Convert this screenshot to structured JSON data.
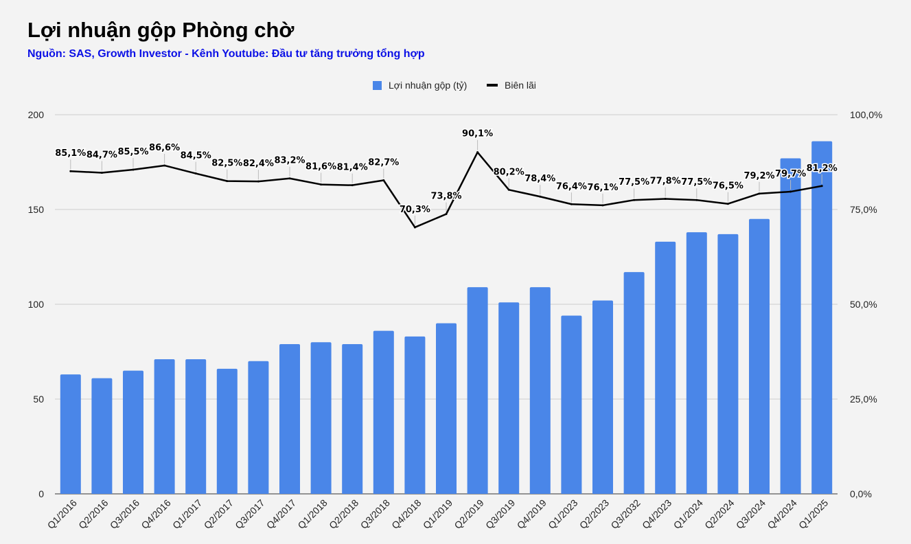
{
  "header": {
    "title": "Lợi nhuận gộp Phòng chờ",
    "subtitle": "Nguồn: SAS, Growth Investor - Kênh Youtube: Đầu tư tăng trưởng tổng hợp"
  },
  "colors": {
    "bar": "#4a86e8",
    "line": "#000000",
    "grid": "#cccccc",
    "subtitle": "#0b10e6"
  },
  "chart_data": {
    "type": "bar",
    "title": "Lợi nhuận gộp Phòng chờ",
    "categories": [
      "Q1/2016",
      "Q2/2016",
      "Q3/2016",
      "Q4/2016",
      "Q1/2017",
      "Q2/2017",
      "Q3/2017",
      "Q4/2017",
      "Q1/2018",
      "Q2/2018",
      "Q3/2018",
      "Q4/2018",
      "Q1/2019",
      "Q2/2019",
      "Q3/2019",
      "Q4/2019",
      "Q1/2023",
      "Q2/2023",
      "Q3/2032",
      "Q4/2023",
      "Q1/2024",
      "Q2/2024",
      "Q3/2024",
      "Q4/2024",
      "Q1/2025"
    ],
    "series": [
      {
        "name": "Lợi nhuận gộp (tỷ)",
        "type": "bar",
        "axis": "left",
        "values": [
          63,
          61,
          65,
          71,
          71,
          66,
          70,
          79,
          80,
          79,
          86,
          83,
          90,
          109,
          101,
          109,
          94,
          102,
          117,
          133,
          138,
          137,
          145,
          177,
          186
        ]
      },
      {
        "name": "Biên lãi",
        "type": "line",
        "axis": "right",
        "values": [
          85.1,
          84.7,
          85.5,
          86.6,
          84.5,
          82.5,
          82.4,
          83.2,
          81.6,
          81.4,
          82.7,
          70.3,
          73.8,
          90.1,
          80.2,
          78.4,
          76.4,
          76.1,
          77.5,
          77.8,
          77.5,
          76.5,
          79.2,
          79.7,
          81.2
        ],
        "labels": [
          "85,1%",
          "84,7%",
          "85,5%",
          "86,6%",
          "84,5%",
          "82,5%",
          "82,4%",
          "83,2%",
          "81,6%",
          "81,4%",
          "82,7%",
          "70,3%",
          "73,8%",
          "90,1%",
          "80,2%",
          "78,4%",
          "76,4%",
          "76,1%",
          "77,5%",
          "77,8%",
          "77,5%",
          "76,5%",
          "79,2%",
          "79,7%",
          "81,2%"
        ]
      }
    ],
    "left_axis": {
      "ylim": [
        0,
        200
      ],
      "ticks": [
        "0",
        "50",
        "100",
        "150",
        "200"
      ],
      "tick_values": [
        0,
        50,
        100,
        150,
        200
      ]
    },
    "right_axis": {
      "ylim": [
        0,
        100
      ],
      "ticks": [
        "0,0%",
        "25,0%",
        "50,0%",
        "75,0%",
        "100,0%"
      ],
      "tick_values": [
        0,
        25,
        50,
        75,
        100
      ]
    },
    "legend": {
      "position": "top",
      "items": [
        {
          "label": "Lợi nhuận gộp (tỷ)",
          "marker": "square"
        },
        {
          "label": "Biên lãi",
          "marker": "line"
        }
      ]
    }
  }
}
